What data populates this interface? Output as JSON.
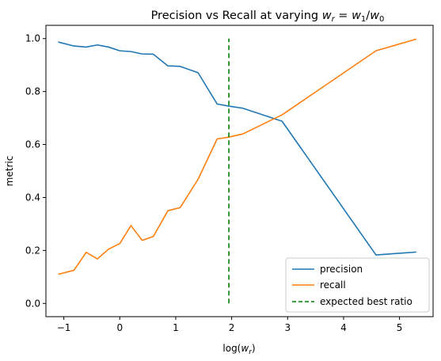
{
  "chart_data": {
    "type": "line",
    "title_prefix": "Precision vs Recall at varying ",
    "title_math": [
      "w",
      "r",
      " = ",
      "w",
      "1",
      "/",
      "w",
      "0"
    ],
    "xlabel_prefix": "log(",
    "xlabel_sym": "w",
    "xlabel_sub": "r",
    "xlabel_suffix": ")",
    "ylabel": "metric",
    "xlim": [
      -1.32,
      5.6
    ],
    "ylim": [
      -0.05,
      1.05
    ],
    "xticks": [
      -1,
      0,
      1,
      2,
      3,
      4,
      5
    ],
    "xtick_labels": [
      "−1",
      "0",
      "1",
      "2",
      "3",
      "4",
      "5"
    ],
    "yticks": [
      0.0,
      0.2,
      0.4,
      0.6,
      0.8,
      1.0
    ],
    "ytick_labels": [
      "0.0",
      "0.2",
      "0.4",
      "0.6",
      "0.8",
      "1.0"
    ],
    "grid": false,
    "legend_position": "lower-right",
    "series": [
      {
        "name": "precision",
        "color": "#1f77b4",
        "style": "solid",
        "x": [
          -1.1,
          -0.82,
          -0.6,
          -0.4,
          -0.2,
          0.0,
          0.2,
          0.4,
          0.6,
          0.86,
          1.08,
          1.4,
          1.74,
          1.95,
          2.2,
          2.9,
          4.58,
          5.3
        ],
        "y": [
          0.987,
          0.972,
          0.968,
          0.976,
          0.968,
          0.954,
          0.951,
          0.942,
          0.941,
          0.897,
          0.895,
          0.871,
          0.753,
          0.745,
          0.737,
          0.688,
          0.183,
          0.194
        ]
      },
      {
        "name": "recall",
        "color": "#ff7f0e",
        "style": "solid",
        "x": [
          -1.1,
          -0.82,
          -0.6,
          -0.4,
          -0.2,
          0.0,
          0.2,
          0.4,
          0.6,
          0.86,
          1.08,
          1.4,
          1.74,
          1.95,
          2.2,
          2.9,
          4.58,
          5.3
        ],
        "y": [
          0.11,
          0.125,
          0.193,
          0.168,
          0.205,
          0.226,
          0.294,
          0.238,
          0.253,
          0.35,
          0.362,
          0.469,
          0.621,
          0.628,
          0.64,
          0.712,
          0.954,
          0.998
        ]
      }
    ],
    "vline": {
      "name": "expected best ratio",
      "color": "#008000",
      "style": "dashed",
      "x": 1.95,
      "ymin": 0.0,
      "ymax": 1.0
    }
  }
}
